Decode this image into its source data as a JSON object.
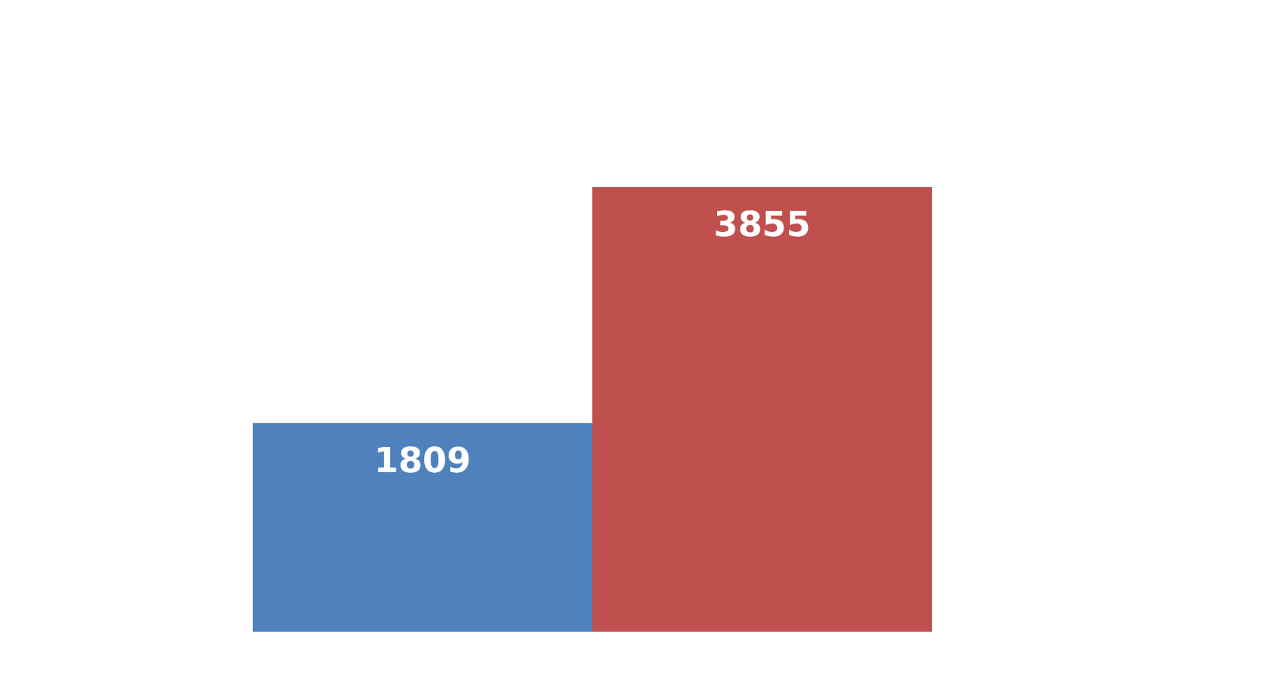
{
  "chart_data": {
    "type": "bar",
    "categories": [
      null,
      null
    ],
    "values": [
      1809,
      3855
    ],
    "colors": [
      "#4f81bd",
      "#c0504d"
    ],
    "data_labels": true
  }
}
